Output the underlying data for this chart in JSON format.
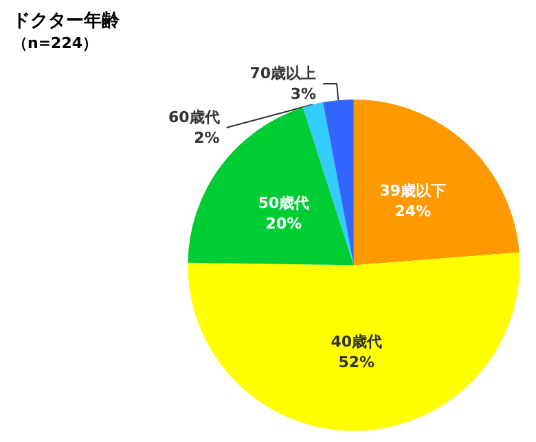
{
  "chart_data": {
    "type": "pie",
    "title": "ドクター年齢",
    "subtitle": "（n=224）",
    "categories": [
      "39歳以下",
      "40歳代",
      "50歳代",
      "60歳代",
      "70歳以上"
    ],
    "values": [
      24,
      52,
      20,
      2,
      3
    ],
    "colors": [
      "#ff9900",
      "#ffff00",
      "#00cc33",
      "#33ccff",
      "#3366ff"
    ],
    "value_labels": [
      "24%",
      "52%",
      "20%",
      "2%",
      "3%"
    ],
    "legend": false
  }
}
